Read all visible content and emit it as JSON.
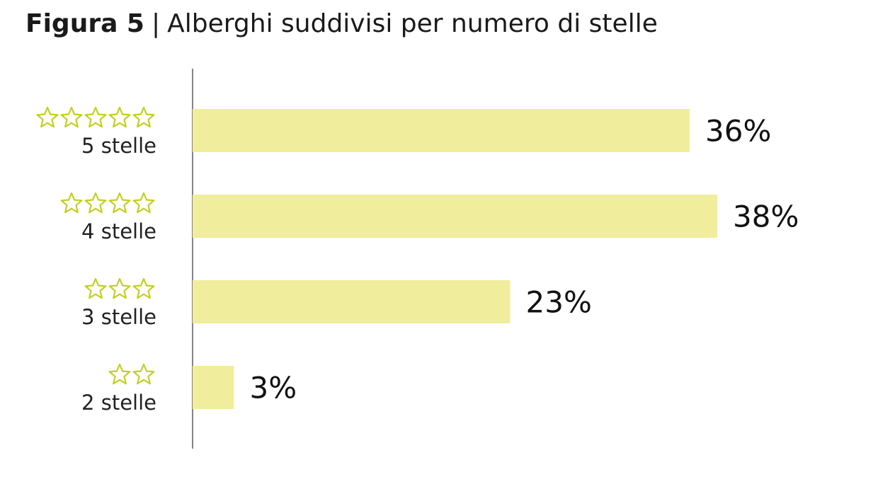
{
  "figure_label": "Figura 5",
  "separator": "|",
  "chart_data": {
    "type": "bar",
    "orientation": "horizontal",
    "title": "Alberghi suddivisi per numero di stelle",
    "categories": [
      "5 stelle",
      "4 stelle",
      "3 stelle",
      "2 stelle"
    ],
    "stars": [
      5,
      4,
      3,
      2
    ],
    "values": [
      36,
      38,
      23,
      3
    ],
    "value_labels": [
      "36%",
      "38%",
      "23%",
      "3%"
    ],
    "unit": "%",
    "xlim": [
      0,
      50
    ],
    "grid": false,
    "legend": "none",
    "bar_color": "#f0ed9c",
    "star_color": "#c3cf1f"
  }
}
